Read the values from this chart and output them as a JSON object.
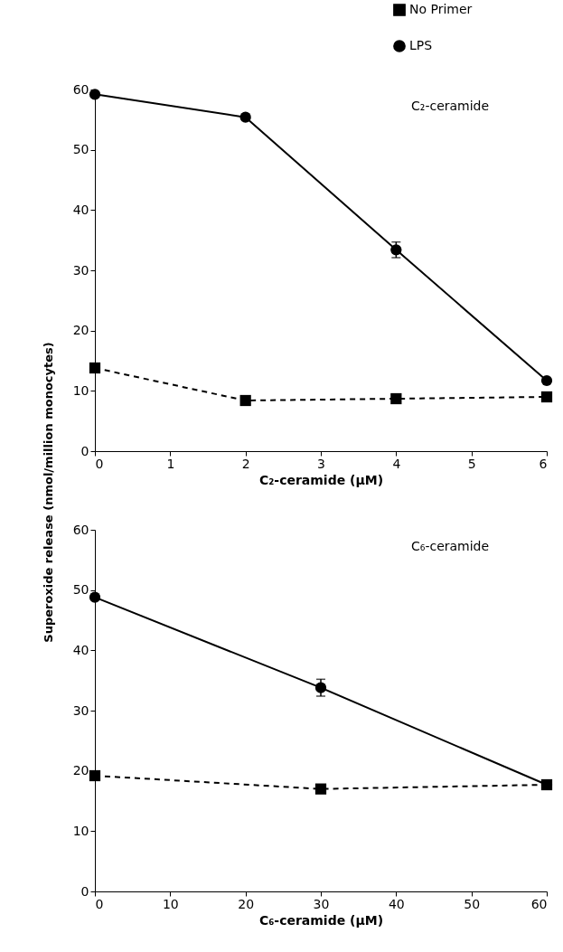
{
  "chart_data": [
    {
      "type": "line",
      "xlabel": "C₂-ceramide (μM)",
      "ylabel": "Superoxide release (nmol/million monocytes)",
      "annotations": [
        "C₂-ceramide"
      ],
      "x": [
        0,
        2,
        4,
        6
      ],
      "xlim": [
        0,
        6
      ],
      "xticks": [
        0,
        1,
        2,
        3,
        4,
        5,
        6
      ],
      "ylim": [
        0,
        60
      ],
      "yticks": [
        0,
        10,
        20,
        30,
        40,
        50,
        60
      ],
      "grid": false,
      "legend": "top right",
      "series": [
        {
          "name": "No Primer",
          "color": "#000000",
          "marker": "square",
          "line_style": "dashed",
          "values": [
            13.8,
            8.4,
            8.7,
            9.0
          ]
        },
        {
          "name": "LPS",
          "color": "#000000",
          "marker": "circle",
          "line_style": "solid",
          "values": [
            59.2,
            55.4,
            33.4,
            11.7
          ],
          "errors": [
            null,
            null,
            1.3,
            null
          ]
        }
      ]
    },
    {
      "type": "line",
      "xlabel": "C₆-ceramide (μM)",
      "annotations": [
        "C₆-ceramide"
      ],
      "x": [
        0,
        30,
        60
      ],
      "xlim": [
        0,
        60
      ],
      "xticks": [
        0,
        10,
        20,
        30,
        40,
        50,
        60
      ],
      "ylim": [
        0,
        60
      ],
      "yticks": [
        0,
        10,
        20,
        30,
        40,
        50,
        60
      ],
      "grid": false,
      "series": [
        {
          "color": "#000000",
          "marker": "square",
          "line_style": "dashed",
          "values": [
            19.2,
            17.0,
            17.7
          ]
        },
        {
          "color": "#000000",
          "marker": "circle",
          "line_style": "solid",
          "values": [
            48.8,
            33.8,
            17.7
          ],
          "errors": [
            null,
            1.4,
            null
          ]
        }
      ]
    }
  ]
}
